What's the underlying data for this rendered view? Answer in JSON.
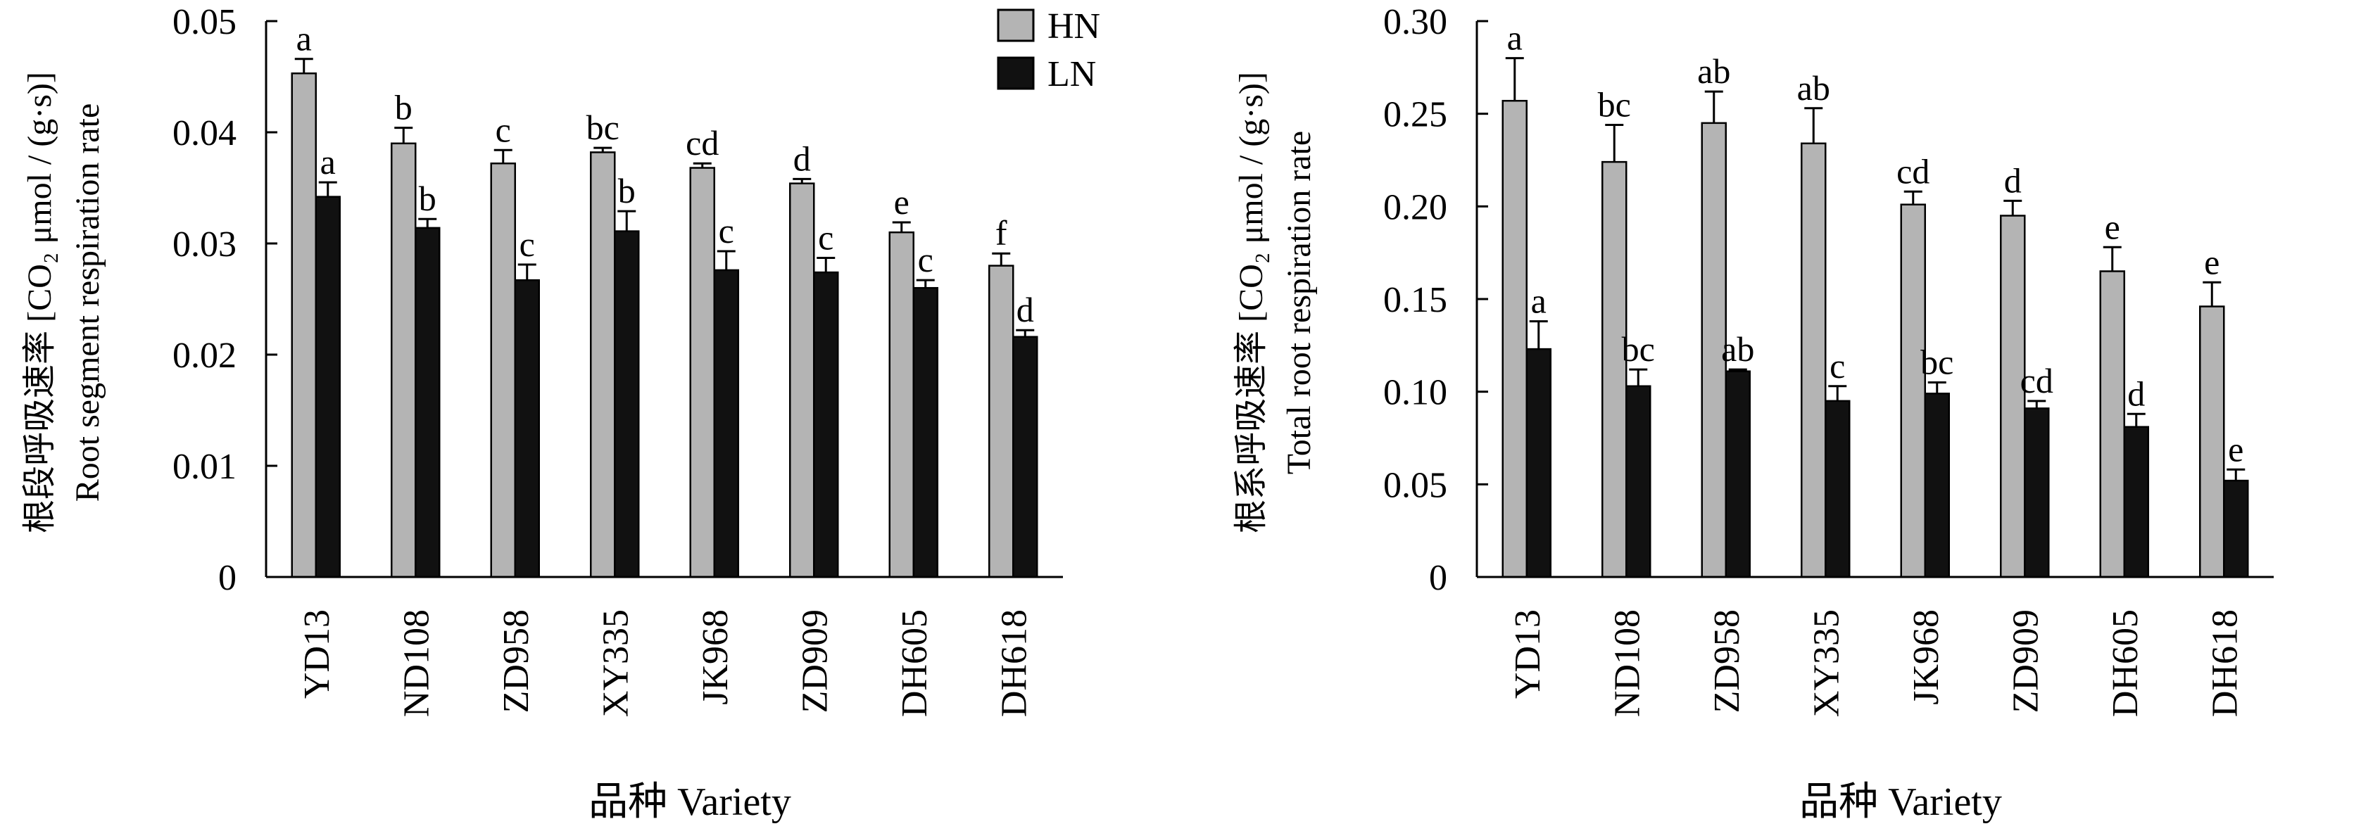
{
  "colors": {
    "HN": "#b4b4b4",
    "LN": "#111111",
    "axis": "#000000"
  },
  "chart_data": [
    {
      "type": "bar",
      "title": "",
      "xlabel": "品种 Variety",
      "ylabel_cn": "根段呼吸速率 [CO₂ μmol / (g·s)]",
      "ylabel_en": "Root segment respiration rate",
      "ylim": [
        0,
        0.05
      ],
      "yticks": [
        0,
        0.01,
        0.02,
        0.03,
        0.04,
        0.05
      ],
      "ytick_labels": [
        "0",
        "0.01",
        "0.02",
        "0.03",
        "0.04",
        "0.05"
      ],
      "legend_position": "top-right",
      "categories": [
        "YD13",
        "ND108",
        "ZD958",
        "XY335",
        "JK968",
        "ZD909",
        "DH605",
        "DH618"
      ],
      "series": [
        {
          "name": "HN",
          "values": [
            0.0453,
            0.039,
            0.0372,
            0.0382,
            0.0368,
            0.0354,
            0.031,
            0.028
          ],
          "errors": [
            0.0013,
            0.0014,
            0.0012,
            0.0004,
            0.0004,
            0.0004,
            0.0009,
            0.0011
          ],
          "letters": [
            "a",
            "b",
            "c",
            "bc",
            "cd",
            "d",
            "e",
            "f"
          ]
        },
        {
          "name": "LN",
          "values": [
            0.0342,
            0.0314,
            0.0267,
            0.0311,
            0.0276,
            0.0274,
            0.026,
            0.0216
          ],
          "errors": [
            0.0013,
            0.0008,
            0.0014,
            0.0018,
            0.0017,
            0.0013,
            0.0007,
            0.0006
          ],
          "letters": [
            "a",
            "b",
            "c",
            "b",
            "c",
            "c",
            "c",
            "d"
          ]
        }
      ]
    },
    {
      "type": "bar",
      "title": "",
      "xlabel": "品种 Variety",
      "ylabel_cn": "根系呼吸速率 [CO₂ μmol / (g·s)]",
      "ylabel_en": "Total root respiration rate",
      "ylim": [
        0,
        0.3
      ],
      "yticks": [
        0,
        0.05,
        0.1,
        0.15,
        0.2,
        0.25,
        0.3
      ],
      "ytick_labels": [
        "0",
        "0.05",
        "0.10",
        "0.15",
        "0.20",
        "0.25",
        "0.30"
      ],
      "categories": [
        "YD13",
        "ND108",
        "ZD958",
        "XY335",
        "JK968",
        "ZD909",
        "DH605",
        "DH618"
      ],
      "series": [
        {
          "name": "HN",
          "values": [
            0.257,
            0.224,
            0.245,
            0.234,
            0.201,
            0.195,
            0.165,
            0.146
          ],
          "errors": [
            0.023,
            0.02,
            0.017,
            0.019,
            0.007,
            0.008,
            0.013,
            0.013
          ],
          "letters": [
            "a",
            "bc",
            "ab",
            "ab",
            "cd",
            "d",
            "e",
            "e"
          ]
        },
        {
          "name": "LN",
          "values": [
            0.123,
            0.103,
            0.111,
            0.095,
            0.099,
            0.091,
            0.081,
            0.052
          ],
          "errors": [
            0.015,
            0.009,
            0.001,
            0.008,
            0.006,
            0.004,
            0.007,
            0.006
          ],
          "letters": [
            "a",
            "bc",
            "ab",
            "c",
            "bc",
            "cd",
            "d",
            "e"
          ]
        }
      ]
    }
  ]
}
